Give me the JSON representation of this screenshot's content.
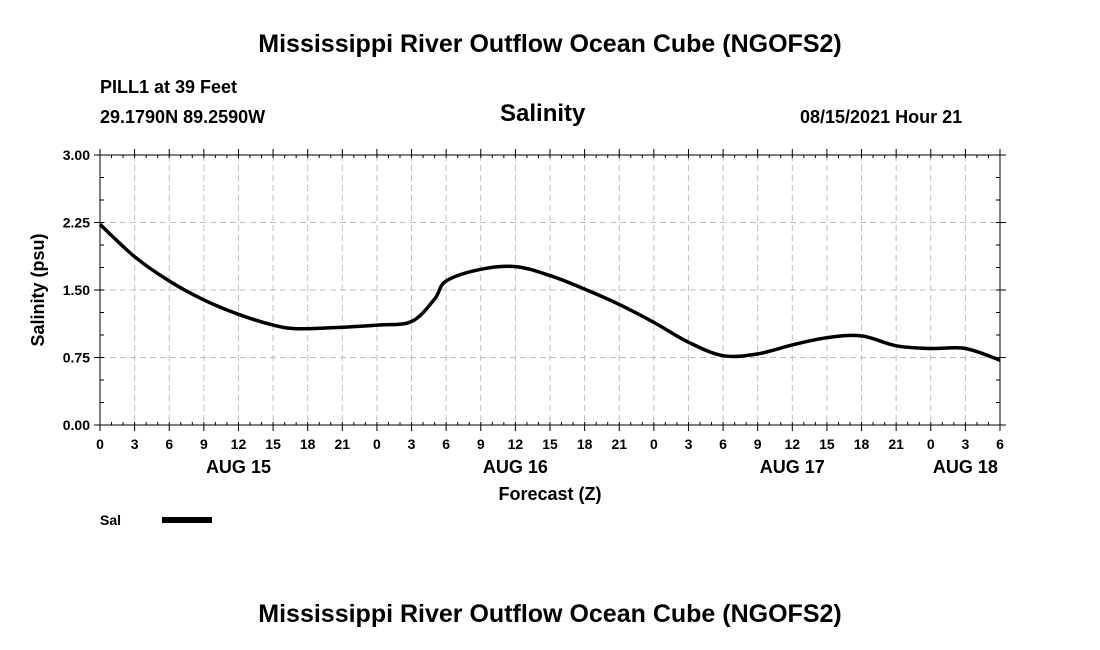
{
  "page": {
    "title_top": "Mississippi River Outflow Ocean Cube (NGOFS2)",
    "title_bottom": "Mississippi River Outflow Ocean Cube (NGOFS2)",
    "station": "PILL1 at 39 Feet",
    "coords": "29.1790N  89.2590W",
    "variable": "Salinity",
    "datetime": "08/15/2021 Hour 21"
  },
  "chart_data": {
    "type": "line",
    "title": "Salinity",
    "xlabel": "Forecast (Z)",
    "ylabel": "Salinity (psu)",
    "ylim": [
      0,
      3
    ],
    "xlim": [
      0,
      78
    ],
    "x_units": "hours from AUG 15 00Z",
    "y_ticks": [
      "0.00",
      "0.75",
      "1.50",
      "2.25",
      "3.00"
    ],
    "x_ticks": [
      0,
      3,
      6,
      9,
      12,
      15,
      18,
      21,
      24,
      27,
      30,
      33,
      36,
      39,
      42,
      45,
      48,
      51,
      54,
      57,
      60,
      63,
      66,
      69,
      72,
      75,
      78
    ],
    "x_tick_labels": [
      "0",
      "3",
      "6",
      "9",
      "12",
      "15",
      "18",
      "21",
      "0",
      "3",
      "6",
      "9",
      "12",
      "15",
      "18",
      "21",
      "0",
      "3",
      "6",
      "9",
      "12",
      "15",
      "18",
      "21",
      "0",
      "3",
      "6"
    ],
    "date_labels": [
      {
        "text": "AUG 15",
        "x": 12
      },
      {
        "text": "AUG 16",
        "x": 36
      },
      {
        "text": "AUG 17",
        "x": 60
      },
      {
        "text": "AUG 18",
        "x": 75
      }
    ],
    "grid": true,
    "legend": {
      "placement": "bottom-left",
      "label": "Sal"
    },
    "series": [
      {
        "name": "Sal",
        "x": [
          0,
          3,
          6,
          9,
          12,
          15,
          17,
          20,
          24,
          27,
          29,
          30,
          33,
          36,
          39,
          42,
          45,
          48,
          51,
          54,
          57,
          60,
          63,
          66,
          69,
          72,
          75,
          78
        ],
        "values": [
          2.23,
          1.87,
          1.6,
          1.39,
          1.23,
          1.11,
          1.07,
          1.08,
          1.11,
          1.15,
          1.4,
          1.6,
          1.73,
          1.76,
          1.66,
          1.51,
          1.34,
          1.14,
          0.92,
          0.77,
          0.79,
          0.89,
          0.97,
          0.99,
          0.88,
          0.85,
          0.85,
          0.72
        ]
      }
    ]
  }
}
